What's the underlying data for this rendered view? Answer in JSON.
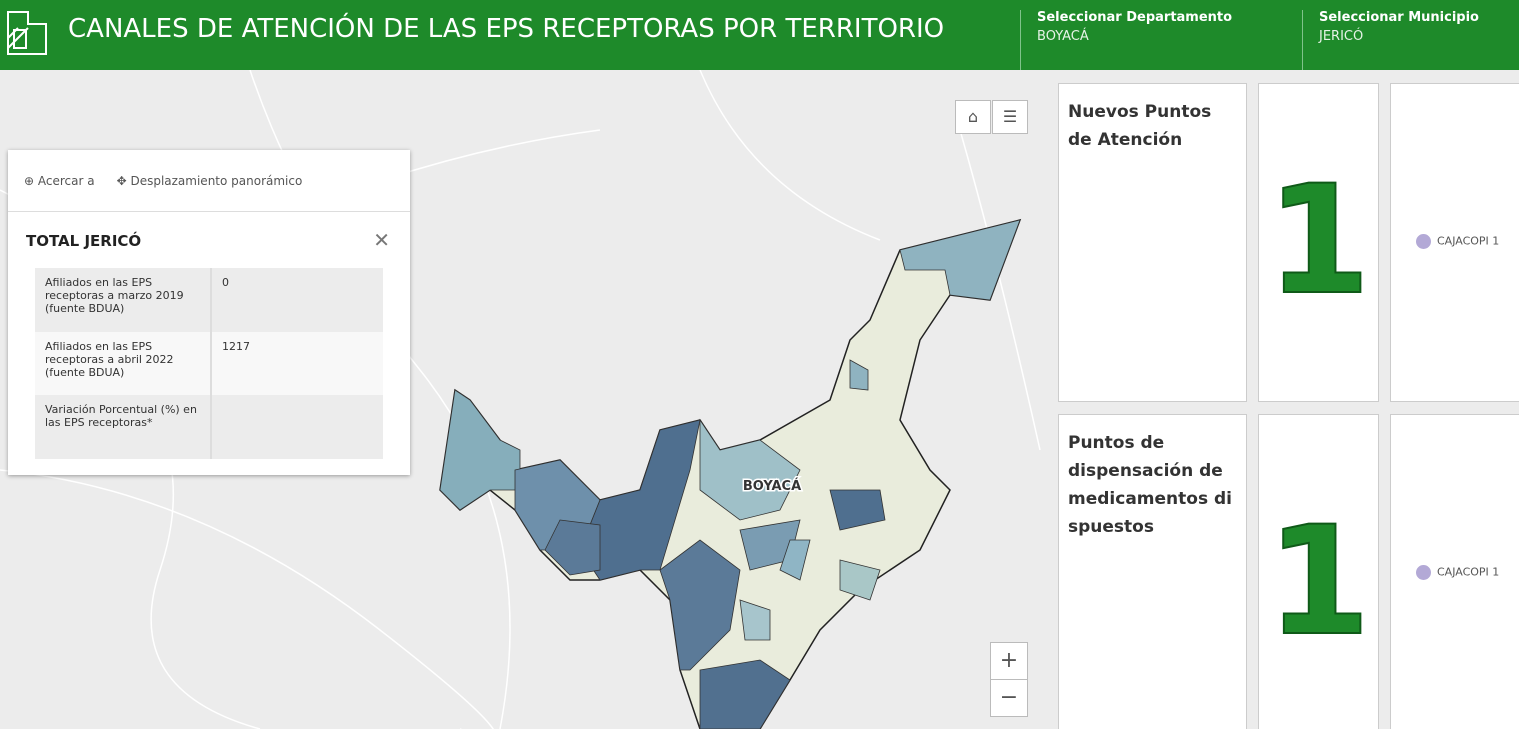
{
  "header": {
    "title": "CANALES DE ATENCIÓN DE LAS EPS RECEPTORAS POR TERRITORIO",
    "selectors": [
      {
        "label": "Seleccionar Departamento",
        "value": "BOYACÁ"
      },
      {
        "label": "Seleccionar Municipio",
        "value": "JERICÓ"
      }
    ]
  },
  "map": {
    "label": "BOYACÁ"
  },
  "popup": {
    "toolbar": [
      "Acercar a",
      "Desplazamiento panorámico"
    ],
    "title": "TOTAL JERICÓ",
    "rows": [
      [
        "Afiliados en las EPS receptoras a marzo 2019 (fuente BDUA)",
        0
      ],
      [
        "Afiliados en las EPS receptoras a abril 2022 (fuente BDUA)",
        1217
      ],
      [
        "Variación Porcentual (%) en las EPS receptoras*"
      ]
    ]
  },
  "panels": [
    {
      "title": "Nuevos Puntos de Atención",
      "value": 1,
      "legend": "CAJACOPI 1"
    },
    {
      "title": "Puntos de dispensación de medicamentos di spuestos",
      "value": 1,
      "legend": "CAJACOPI 1"
    }
  ]
}
